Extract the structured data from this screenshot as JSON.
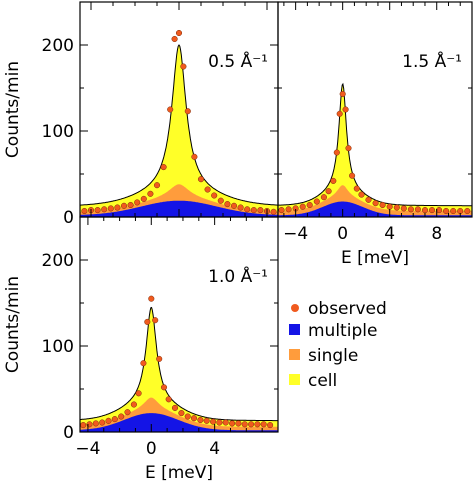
{
  "chart_data": [
    {
      "type": "area",
      "panel_label": "0.5 Å⁻¹",
      "ylabel": "Counts/min",
      "xlabel": "",
      "xlim": [
        -4.5,
        4.5
      ],
      "ylim": [
        0,
        250
      ],
      "yticks": [
        0,
        100,
        200
      ],
      "xticks": [],
      "peak": 200,
      "single_peak": 38,
      "single_base": 3,
      "multiple_peak": 17,
      "cell_base": 7,
      "observed": [
        {
          "x": -4.3,
          "y": 7
        },
        {
          "x": -4.0,
          "y": 8
        },
        {
          "x": -3.7,
          "y": 8
        },
        {
          "x": -3.4,
          "y": 9
        },
        {
          "x": -3.1,
          "y": 10
        },
        {
          "x": -2.8,
          "y": 11
        },
        {
          "x": -2.5,
          "y": 13
        },
        {
          "x": -2.2,
          "y": 14
        },
        {
          "x": -1.9,
          "y": 17
        },
        {
          "x": -1.6,
          "y": 21
        },
        {
          "x": -1.3,
          "y": 27
        },
        {
          "x": -1.0,
          "y": 37
        },
        {
          "x": -0.7,
          "y": 58
        },
        {
          "x": -0.4,
          "y": 125
        },
        {
          "x": -0.2,
          "y": 207
        },
        {
          "x": 0.0,
          "y": 214
        },
        {
          "x": 0.2,
          "y": 175
        },
        {
          "x": 0.4,
          "y": 123
        },
        {
          "x": 0.7,
          "y": 70
        },
        {
          "x": 1.0,
          "y": 44
        },
        {
          "x": 1.3,
          "y": 32
        },
        {
          "x": 1.6,
          "y": 25
        },
        {
          "x": 1.9,
          "y": 19
        },
        {
          "x": 2.2,
          "y": 15
        },
        {
          "x": 2.5,
          "y": 13
        },
        {
          "x": 2.8,
          "y": 11
        },
        {
          "x": 3.1,
          "y": 9
        },
        {
          "x": 3.4,
          "y": 8
        },
        {
          "x": 3.7,
          "y": 8
        },
        {
          "x": 4.0,
          "y": 7
        },
        {
          "x": 4.3,
          "y": 6
        }
      ]
    },
    {
      "type": "area",
      "panel_label": "1.5 Å⁻¹",
      "ylabel": "",
      "xlabel": "E [meV]",
      "xlim": [
        -5.5,
        11
      ],
      "ylim": [
        0,
        250
      ],
      "yticks": [],
      "xticks": [
        -4,
        0,
        4,
        8
      ],
      "peak": 155,
      "single_peak": 37,
      "single_base": 5,
      "multiple_peak": 16,
      "cell_base": 6,
      "observed": [
        {
          "x": -5.2,
          "y": 8
        },
        {
          "x": -4.6,
          "y": 9
        },
        {
          "x": -4.0,
          "y": 10
        },
        {
          "x": -3.4,
          "y": 12
        },
        {
          "x": -2.8,
          "y": 14
        },
        {
          "x": -2.2,
          "y": 18
        },
        {
          "x": -1.6,
          "y": 23
        },
        {
          "x": -1.2,
          "y": 30
        },
        {
          "x": -0.8,
          "y": 42
        },
        {
          "x": -0.5,
          "y": 75
        },
        {
          "x": -0.25,
          "y": 120
        },
        {
          "x": 0.0,
          "y": 143
        },
        {
          "x": 0.25,
          "y": 125
        },
        {
          "x": 0.5,
          "y": 80
        },
        {
          "x": 0.8,
          "y": 48
        },
        {
          "x": 1.2,
          "y": 33
        },
        {
          "x": 1.6,
          "y": 26
        },
        {
          "x": 2.2,
          "y": 20
        },
        {
          "x": 2.8,
          "y": 16
        },
        {
          "x": 3.4,
          "y": 14
        },
        {
          "x": 4.0,
          "y": 12
        },
        {
          "x": 4.6,
          "y": 11
        },
        {
          "x": 5.2,
          "y": 10
        },
        {
          "x": 5.8,
          "y": 9
        },
        {
          "x": 6.4,
          "y": 9
        },
        {
          "x": 7.0,
          "y": 8
        },
        {
          "x": 7.6,
          "y": 8
        },
        {
          "x": 8.2,
          "y": 8
        },
        {
          "x": 8.8,
          "y": 7
        },
        {
          "x": 9.4,
          "y": 7
        },
        {
          "x": 10.0,
          "y": 7
        },
        {
          "x": 10.6,
          "y": 7
        }
      ]
    },
    {
      "type": "area",
      "panel_label": "1.0 Å⁻¹",
      "ylabel": "Counts/min",
      "xlabel": "E [meV]",
      "xlim": [
        -4.5,
        8
      ],
      "ylim": [
        0,
        250
      ],
      "yticks": [
        0,
        100,
        200
      ],
      "xticks": [
        -4,
        0,
        4
      ],
      "peak": 145,
      "single_peak": 40,
      "single_base": 4,
      "multiple_peak": 20,
      "cell_base": 7,
      "observed": [
        {
          "x": -4.3,
          "y": 8
        },
        {
          "x": -3.9,
          "y": 9
        },
        {
          "x": -3.5,
          "y": 10
        },
        {
          "x": -3.1,
          "y": 11
        },
        {
          "x": -2.7,
          "y": 13
        },
        {
          "x": -2.3,
          "y": 15
        },
        {
          "x": -1.9,
          "y": 18
        },
        {
          "x": -1.5,
          "y": 23
        },
        {
          "x": -1.1,
          "y": 32
        },
        {
          "x": -0.8,
          "y": 45
        },
        {
          "x": -0.5,
          "y": 80
        },
        {
          "x": -0.25,
          "y": 128
        },
        {
          "x": 0.0,
          "y": 155
        },
        {
          "x": 0.25,
          "y": 130
        },
        {
          "x": 0.5,
          "y": 85
        },
        {
          "x": 0.8,
          "y": 52
        },
        {
          "x": 1.1,
          "y": 38
        },
        {
          "x": 1.5,
          "y": 28
        },
        {
          "x": 1.9,
          "y": 22
        },
        {
          "x": 2.3,
          "y": 18
        },
        {
          "x": 2.7,
          "y": 16
        },
        {
          "x": 3.1,
          "y": 14
        },
        {
          "x": 3.5,
          "y": 13
        },
        {
          "x": 3.9,
          "y": 12
        },
        {
          "x": 4.3,
          "y": 11
        },
        {
          "x": 4.7,
          "y": 11
        },
        {
          "x": 5.1,
          "y": 10
        },
        {
          "x": 5.5,
          "y": 10
        },
        {
          "x": 5.9,
          "y": 9
        },
        {
          "x": 6.3,
          "y": 9
        },
        {
          "x": 6.7,
          "y": 9
        },
        {
          "x": 7.1,
          "y": 9
        },
        {
          "x": 7.5,
          "y": 8
        }
      ]
    }
  ],
  "legend": [
    {
      "label": "observed",
      "color": "#f05a1e",
      "shape": "dot"
    },
    {
      "label": "multiple",
      "color": "#1414e6",
      "shape": "square"
    },
    {
      "label": "single",
      "color": "#ff9c3c",
      "shape": "square"
    },
    {
      "label": "cell",
      "color": "#ffff28",
      "shape": "square"
    }
  ],
  "colors": {
    "cell": "#ffff28",
    "single": "#ff9c3c",
    "multiple": "#1414e6",
    "observed": "#f05a1e",
    "fit_line": "#000000"
  }
}
